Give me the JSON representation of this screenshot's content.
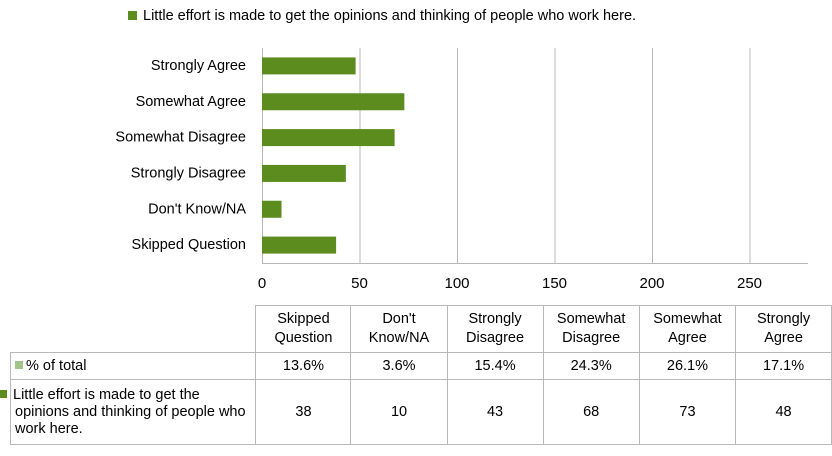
{
  "colors": {
    "bar": "#5d8c1e",
    "pct_swatch": "#a4c38b",
    "grid": "#b8b8b8"
  },
  "chart_data": {
    "type": "bar",
    "orientation": "horizontal",
    "legend": "Little effort is made to get the opinions and thinking of people who work here.",
    "categories": [
      "Strongly Agree",
      "Somewhat Agree",
      "Somewhat Disagree",
      "Strongly Disagree",
      "Don't Know/NA",
      "Skipped Question"
    ],
    "values": [
      48,
      73,
      68,
      43,
      10,
      38
    ],
    "xlim": [
      0,
      280
    ],
    "xticks": [
      0,
      50,
      100,
      150,
      200,
      250
    ],
    "grid": true
  },
  "table": {
    "columns": [
      [
        "Skipped",
        "Question"
      ],
      [
        "Don't",
        "Know/NA"
      ],
      [
        "Strongly",
        "Disagree"
      ],
      [
        "Somewhat",
        "Disagree"
      ],
      [
        "Somewhat",
        "Agree"
      ],
      [
        "Strongly",
        "Agree"
      ]
    ],
    "pct_label": "% of total",
    "pct_values": [
      "13.6%",
      "3.6%",
      "15.4%",
      "24.3%",
      "26.1%",
      "17.1%"
    ],
    "count_label": "Little effort is made to get the opinions and thinking of people who work here.",
    "count_values": [
      "38",
      "10",
      "43",
      "68",
      "73",
      "48"
    ]
  }
}
